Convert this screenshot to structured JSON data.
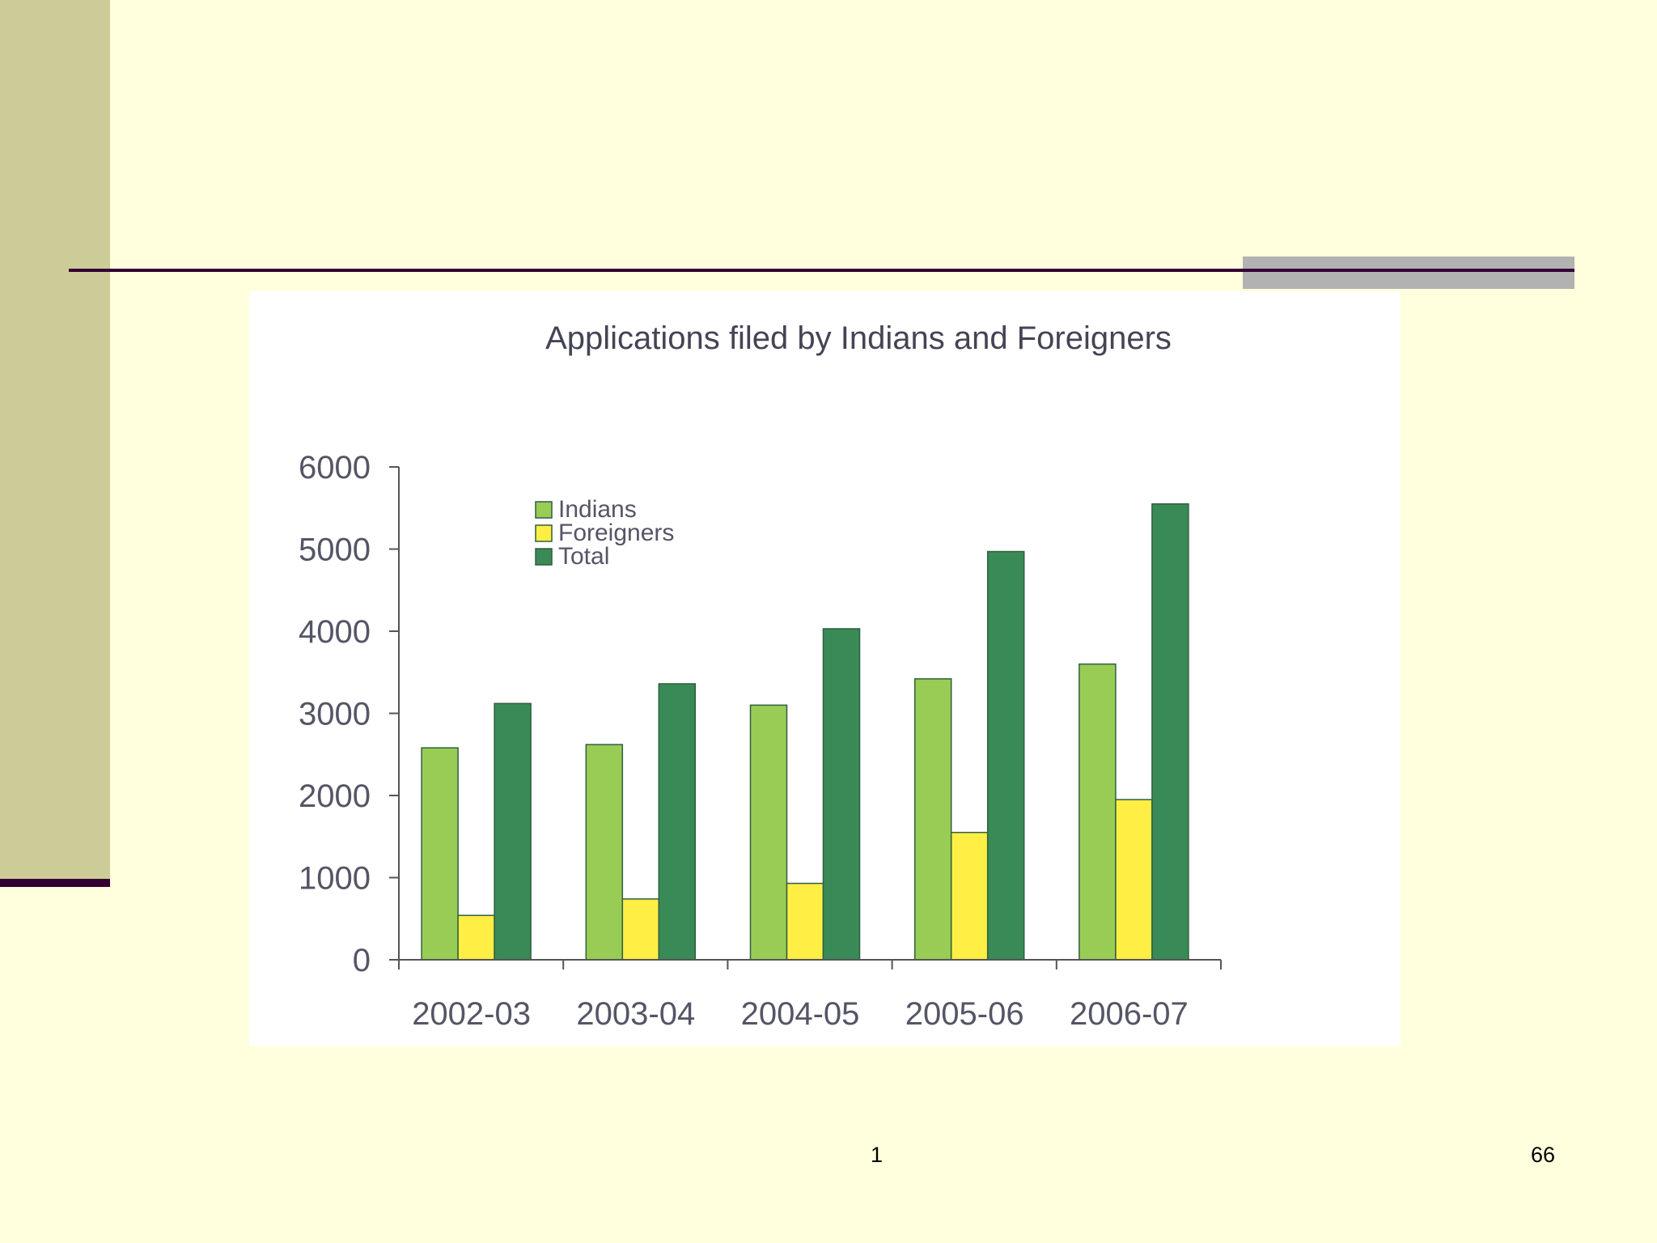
{
  "slide": {
    "footer_center": "1",
    "slide_number": "66"
  },
  "colors": {
    "background": "#ffffdd",
    "sidebar": "#cccc99",
    "rule": "#330033",
    "gray_block": "#b2b2b2",
    "indians": "#99cc55",
    "foreigners": "#ffee44",
    "total": "#3a8a58"
  },
  "chart_data": {
    "type": "bar",
    "title": "Applications filed by Indians and Foreigners",
    "categories": [
      "2002-03",
      "2003-04",
      "2004-05",
      "2005-06",
      "2006-07"
    ],
    "series": [
      {
        "name": "Indians",
        "values": [
          2580,
          2620,
          3100,
          3420,
          3600
        ]
      },
      {
        "name": "Foreigners",
        "values": [
          540,
          740,
          930,
          1550,
          1950
        ]
      },
      {
        "name": "Total",
        "values": [
          3120,
          3360,
          4030,
          4970,
          5550
        ]
      }
    ],
    "yticks": [
      "0",
      "1000",
      "2000",
      "3000",
      "4000",
      "5000",
      "6000"
    ],
    "ylim": [
      0,
      6000
    ],
    "xlabel": "",
    "ylabel": "",
    "legend_position": "top-left"
  }
}
